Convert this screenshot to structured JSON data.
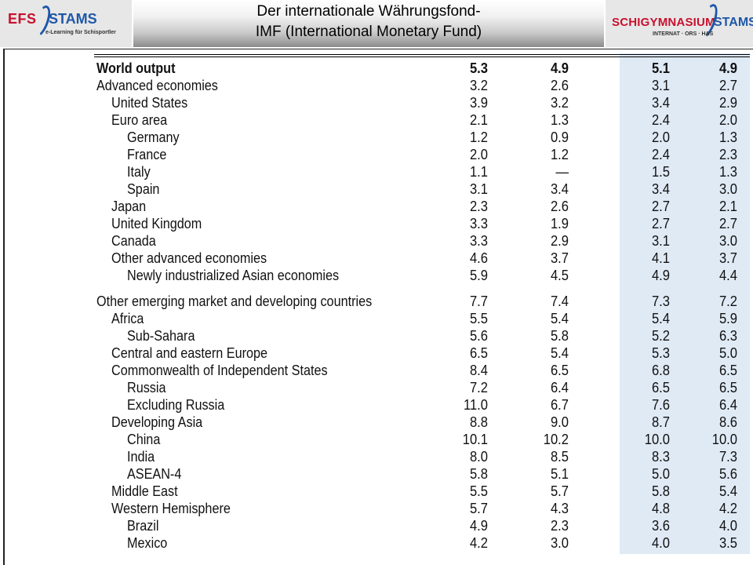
{
  "header": {
    "title_line1": "Der internationale Währungsfond-",
    "title_line2": "IMF (International Monetary Fund)",
    "left_logo": {
      "text_a": "EFS",
      "text_b": "STAMS",
      "tagline": "e-Learning für Schisportler"
    },
    "right_logo": {
      "text_a": "SCHIGYMNASIUM",
      "text_b": "STAMS",
      "tagline": "INTERNAT · ORS · HAS"
    }
  },
  "colors": {
    "shaded_column_bg": "#dfeaf5",
    "logo_red": "#c8102e",
    "logo_blue": "#1f57a8"
  },
  "table": {
    "group1": [
      {
        "label": "World output",
        "level": 0,
        "bold": true,
        "values": [
          "5.3",
          "4.9",
          "5.1",
          "4.9"
        ]
      },
      {
        "label": "Advanced economies",
        "level": 0,
        "values": [
          "3.2",
          "2.6",
          "3.1",
          "2.7"
        ]
      },
      {
        "label": "United States",
        "level": 1,
        "values": [
          "3.9",
          "3.2",
          "3.4",
          "2.9"
        ]
      },
      {
        "label": "Euro area",
        "level": 1,
        "values": [
          "2.1",
          "1.3",
          "2.4",
          "2.0"
        ]
      },
      {
        "label": "Germany",
        "level": 2,
        "values": [
          "1.2",
          "0.9",
          "2.0",
          "1.3"
        ]
      },
      {
        "label": "France",
        "level": 2,
        "values": [
          "2.0",
          "1.2",
          "2.4",
          "2.3"
        ]
      },
      {
        "label": "Italy",
        "level": 2,
        "values": [
          "1.1",
          "—",
          "1.5",
          "1.3"
        ]
      },
      {
        "label": "Spain",
        "level": 2,
        "values": [
          "3.1",
          "3.4",
          "3.4",
          "3.0"
        ]
      },
      {
        "label": "Japan",
        "level": 1,
        "values": [
          "2.3",
          "2.6",
          "2.7",
          "2.1"
        ]
      },
      {
        "label": "United Kingdom",
        "level": 1,
        "values": [
          "3.3",
          "1.9",
          "2.7",
          "2.7"
        ]
      },
      {
        "label": "Canada",
        "level": 1,
        "values": [
          "3.3",
          "2.9",
          "3.1",
          "3.0"
        ]
      },
      {
        "label": "Other advanced economies",
        "level": 1,
        "values": [
          "4.6",
          "3.7",
          "4.1",
          "3.7"
        ]
      },
      {
        "label": "Newly industrialized Asian economies",
        "level": 2,
        "values": [
          "5.9",
          "4.5",
          "4.9",
          "4.4"
        ]
      }
    ],
    "group2": [
      {
        "label": "Other emerging market and developing countries",
        "level": 0,
        "values": [
          "7.7",
          "7.4",
          "7.3",
          "7.2"
        ]
      },
      {
        "label": "Africa",
        "level": 1,
        "values": [
          "5.5",
          "5.4",
          "5.4",
          "5.9"
        ]
      },
      {
        "label": "Sub-Sahara",
        "level": 2,
        "values": [
          "5.6",
          "5.8",
          "5.2",
          "6.3"
        ]
      },
      {
        "label": "Central and eastern Europe",
        "level": 1,
        "values": [
          "6.5",
          "5.4",
          "5.3",
          "5.0"
        ]
      },
      {
        "label": "Commonwealth of Independent States",
        "level": 1,
        "values": [
          "8.4",
          "6.5",
          "6.8",
          "6.5"
        ]
      },
      {
        "label": "Russia",
        "level": 2,
        "values": [
          "7.2",
          "6.4",
          "6.5",
          "6.5"
        ]
      },
      {
        "label": "Excluding Russia",
        "level": 2,
        "values": [
          "11.0",
          "6.7",
          "7.6",
          "6.4"
        ]
      },
      {
        "label": "Developing Asia",
        "level": 1,
        "values": [
          "8.8",
          "9.0",
          "8.7",
          "8.6"
        ]
      },
      {
        "label": "China",
        "level": 2,
        "values": [
          "10.1",
          "10.2",
          "10.0",
          "10.0"
        ]
      },
      {
        "label": "India",
        "level": 2,
        "values": [
          "8.0",
          "8.5",
          "8.3",
          "7.3"
        ]
      },
      {
        "label": "ASEAN-4",
        "level": 2,
        "values": [
          "5.8",
          "5.1",
          "5.0",
          "5.6"
        ]
      },
      {
        "label": "Middle East",
        "level": 1,
        "values": [
          "5.5",
          "5.7",
          "5.8",
          "5.4"
        ]
      },
      {
        "label": "Western Hemisphere",
        "level": 1,
        "values": [
          "5.7",
          "4.3",
          "4.8",
          "4.2"
        ]
      },
      {
        "label": "Brazil",
        "level": 2,
        "values": [
          "4.9",
          "2.3",
          "3.6",
          "4.0"
        ]
      },
      {
        "label": "Mexico",
        "level": 2,
        "values": [
          "4.2",
          "3.0",
          "4.0",
          "3.5"
        ]
      }
    ]
  }
}
